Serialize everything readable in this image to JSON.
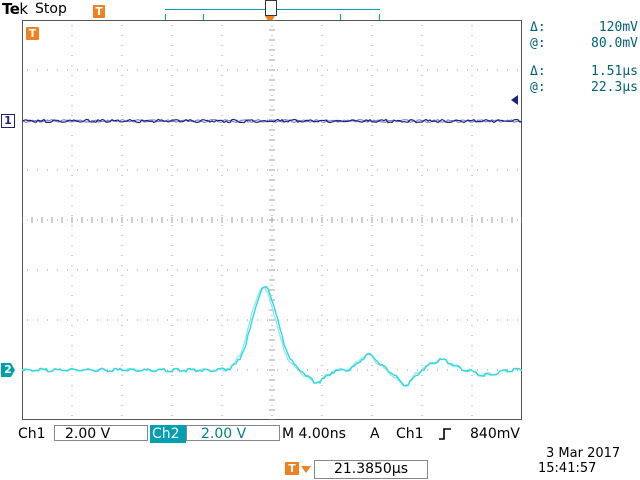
{
  "header": {
    "brand_prefix": "Te",
    "brand_k": "k",
    "run_state": "Stop",
    "trig_marker": "T"
  },
  "plot": {
    "trig_marker": "T",
    "ch1_marker": "1",
    "ch2_marker": "2"
  },
  "cursors": {
    "voltage": {
      "delta_symbol": "Δ:",
      "delta": "120mV",
      "at_symbol": "@:",
      "at": "80.0mV"
    },
    "time": {
      "delta_symbol": "Δ:",
      "delta": "1.51µs",
      "at_symbol": "@:",
      "at": "22.3µs"
    }
  },
  "status": {
    "ch1_label": "Ch1",
    "ch1_scale": "2.00 V",
    "ch2_label": "Ch2",
    "ch2_scale": "2.00 V",
    "timebase": "M 4.00ns",
    "trig_mode": "A",
    "trig_source": "Ch1",
    "trig_slope": "rising-edge-icon",
    "trig_level": "840mV"
  },
  "footer": {
    "hpos_marker": "T",
    "hpos_value": "21.3850µs",
    "date": "3 Mar  2017",
    "time": "15:41:57"
  },
  "colors": {
    "ch1": "#1a237e",
    "ch2": "#33d6e0",
    "accent": "#f08020",
    "grid": "#b0b0b0"
  }
}
